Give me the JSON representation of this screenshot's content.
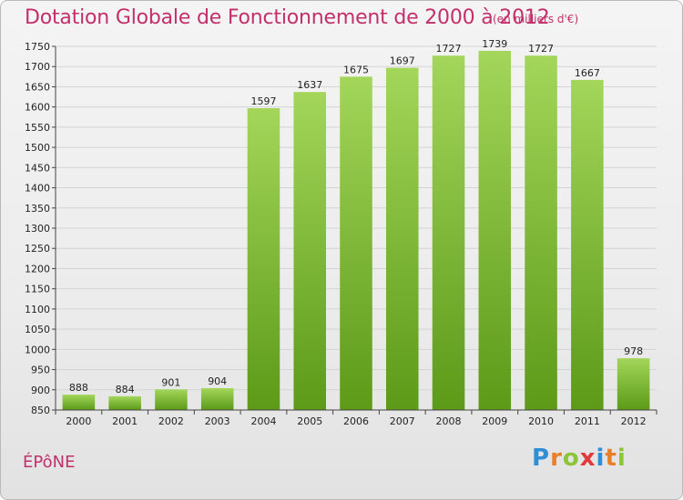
{
  "header": {
    "title": "Dotation Globale de Fonctionnement de 2000 à 2012",
    "subtitle": "(en milliers d'€)"
  },
  "footer": {
    "place": "ÉPôNE",
    "logo_letters": [
      "P",
      "r",
      "o",
      "x",
      "i",
      "t",
      "i"
    ],
    "logo_colors": [
      "#2e8fd6",
      "#e8802a",
      "#8cc43a",
      "#e23a3a",
      "#2e8fd6",
      "#e8802a",
      "#8cc43a"
    ]
  },
  "colors": {
    "bar_light": "#a3d65a",
    "bar_dark": "#5c9a18",
    "grid": "#d4d4d4",
    "accent": "#c2306b"
  },
  "chart_data": {
    "type": "bar",
    "title": "Dotation Globale de Fonctionnement de 2000 à 2012",
    "subtitle": "(en milliers d'€)",
    "xlabel": "",
    "ylabel": "",
    "categories": [
      "2000",
      "2001",
      "2002",
      "2003",
      "2004",
      "2005",
      "2006",
      "2007",
      "2008",
      "2009",
      "2010",
      "2011",
      "2012"
    ],
    "values": [
      888,
      884,
      901,
      904,
      1597,
      1637,
      1675,
      1697,
      1727,
      1739,
      1727,
      1667,
      978
    ],
    "ylim": [
      850,
      1750
    ],
    "ytick_step": 50,
    "grid": true,
    "legend": "none"
  }
}
